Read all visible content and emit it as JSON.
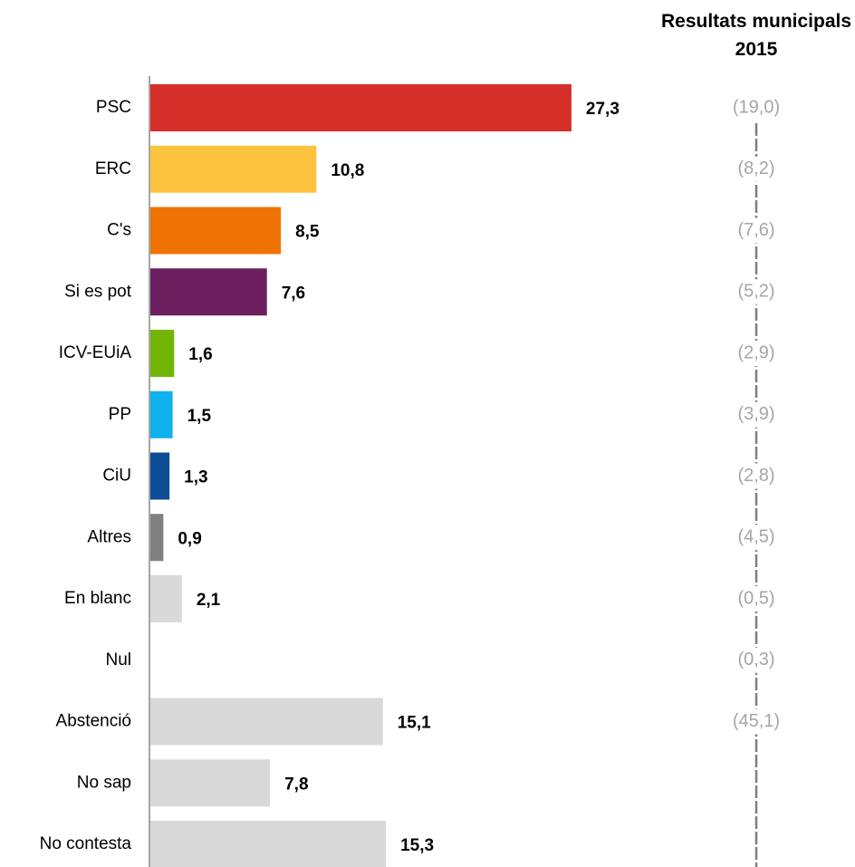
{
  "chart_data": {
    "type": "bar",
    "orientation": "horizontal",
    "categories": [
      "PSC",
      "ERC",
      "C's",
      "Si es pot",
      "ICV-EUiA",
      "PP",
      "CiU",
      "Altres",
      "En blanc",
      "Nul",
      "Abstenció",
      "No sap",
      "No contesta"
    ],
    "values": [
      27.3,
      10.8,
      8.5,
      7.6,
      1.6,
      1.5,
      1.3,
      0.9,
      2.1,
      null,
      15.1,
      7.8,
      15.3
    ],
    "value_labels": [
      "27,3",
      "10,8",
      "8,5",
      "7,6",
      "1,6",
      "1,5",
      "1,3",
      "0,9",
      "2,1",
      null,
      "15,1",
      "7,8",
      "15,3"
    ],
    "colors": [
      "#d62f2a",
      "#fec33f",
      "#f07305",
      "#6b1f5e",
      "#72b505",
      "#0eb1ec",
      "#0e4d96",
      "#808080",
      "#d9d9d9",
      "#d9d9d9",
      "#d9d9d9",
      "#d9d9d9",
      "#d9d9d9"
    ],
    "xlim": [
      0,
      30
    ],
    "results_2015": {
      "title": "Resultats municipals 2015",
      "values": [
        19.0,
        8.2,
        7.6,
        5.2,
        2.9,
        3.9,
        2.8,
        4.5,
        0.5,
        0.3,
        45.1,
        null,
        null
      ],
      "value_labels": [
        "(19,0)",
        "(8,2)",
        "(7,6)",
        "(5,2)",
        "(2,9)",
        "(3,9)",
        "(2,8)",
        "(4,5)",
        "(0,5)",
        "(0,3)",
        "(45,1)",
        null,
        null
      ]
    }
  }
}
